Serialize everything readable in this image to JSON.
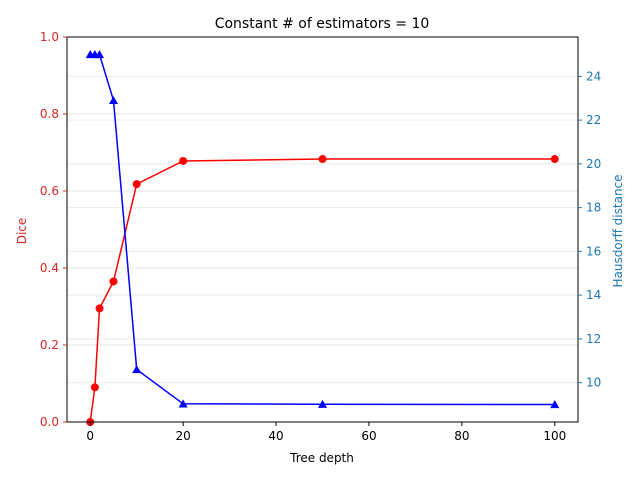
{
  "chart_data": {
    "type": "line",
    "title": "Constant # of estimators = 10",
    "xlabel": "Tree depth",
    "ylabel_left": "Dice",
    "ylabel_right": "Hausdorff distance",
    "xlim": [
      -5,
      105
    ],
    "ylim_left": [
      0,
      1.0
    ],
    "ylim_right": [
      8.2,
      25.8
    ],
    "x_ticks": [
      0,
      20,
      40,
      60,
      80,
      100
    ],
    "x_tick_labels": [
      "0",
      "20",
      "40",
      "60",
      "80",
      "100"
    ],
    "y_left_ticks": [
      0.0,
      0.2,
      0.4,
      0.6,
      0.8,
      1.0
    ],
    "y_left_tick_labels": [
      "0.0",
      "0.2",
      "0.4",
      "0.6",
      "0.8",
      "1.0"
    ],
    "y_right_ticks": [
      10,
      12,
      14,
      16,
      18,
      20,
      22,
      24
    ],
    "y_right_tick_labels": [
      "10",
      "12",
      "14",
      "16",
      "18",
      "20",
      "22",
      "24"
    ],
    "left_axis_color": "#d62728",
    "right_axis_color": "#1f77b4",
    "grid": "horizontal, faint",
    "series": [
      {
        "axis": "left",
        "color": "#ff0000",
        "marker": "circle",
        "x": [
          0,
          1,
          2,
          5,
          10,
          20,
          50,
          100
        ],
        "values": [
          0.0,
          0.09,
          0.295,
          0.365,
          0.618,
          0.678,
          0.683,
          0.683
        ]
      },
      {
        "axis": "right",
        "color": "#0000ff",
        "marker": "triangle",
        "x": [
          0,
          1,
          2,
          5,
          10,
          20,
          50,
          100
        ],
        "values": [
          25.0,
          25.0,
          25.0,
          22.9,
          10.6,
          9.03,
          9.01,
          9.0
        ]
      }
    ]
  }
}
